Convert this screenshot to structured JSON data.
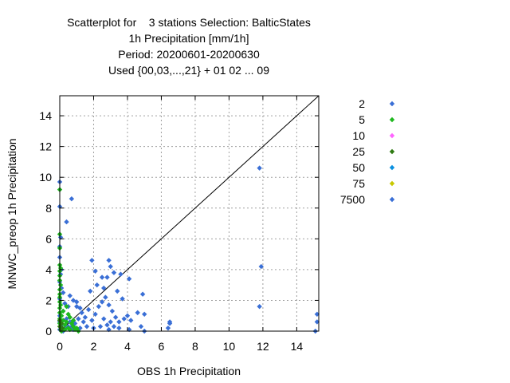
{
  "chart_data": {
    "type": "scatter",
    "title_lines": [
      "Scatterplot for    3 stations Selection: BalticStates",
      "1h Precipitation [mm/1h]",
      "Period: 20200601-20200630",
      "Used {00,03,...,21} + 01 02 ... 09"
    ],
    "xlabel": "OBS 1h Precipitation",
    "ylabel": "MNWC_preop 1h Precipitation",
    "xlim": [
      0,
      15.3
    ],
    "ylim": [
      0,
      15.3
    ],
    "xticks": [
      0,
      2,
      4,
      6,
      8,
      10,
      12,
      14
    ],
    "yticks": [
      0,
      2,
      4,
      6,
      8,
      10,
      12,
      14
    ],
    "grid": true,
    "diagonal_line": true,
    "legend_position": "right",
    "legend": [
      {
        "label": "2",
        "color": "#3a6fd6"
      },
      {
        "label": "5",
        "color": "#1fb81f"
      },
      {
        "label": "10",
        "color": "#ff66ff"
      },
      {
        "label": "25",
        "color": "#2e7a12"
      },
      {
        "label": "50",
        "color": "#0a90e0"
      },
      {
        "label": "75",
        "color": "#c8c800"
      },
      {
        "label": "7500",
        "color": "#3a6fd6"
      }
    ],
    "series": [
      {
        "legend_index": 0,
        "points": [
          [
            0.0,
            9.7
          ],
          [
            0.0,
            8.1
          ],
          [
            0.05,
            6.1
          ],
          [
            0.0,
            5.5
          ],
          [
            0.0,
            4.8
          ],
          [
            0.1,
            4.0
          ],
          [
            0.05,
            3.7
          ],
          [
            0.0,
            3.2
          ],
          [
            0.1,
            2.8
          ],
          [
            0.2,
            2.5
          ],
          [
            0.0,
            2.1
          ],
          [
            0.3,
            1.8
          ],
          [
            0.5,
            1.6
          ],
          [
            0.2,
            1.3
          ],
          [
            0.0,
            1.0
          ],
          [
            0.4,
            0.8
          ],
          [
            0.6,
            0.6
          ],
          [
            0.1,
            0.4
          ],
          [
            0.3,
            0.2
          ],
          [
            0.0,
            0.1
          ],
          [
            0.7,
            0.3
          ],
          [
            0.9,
            0.5
          ],
          [
            1.1,
            0.8
          ],
          [
            1.3,
            1.2
          ],
          [
            1.5,
            0.9
          ],
          [
            1.7,
            1.4
          ],
          [
            1.9,
            0.7
          ],
          [
            2.1,
            1.1
          ],
          [
            2.3,
            1.6
          ],
          [
            2.5,
            1.9
          ],
          [
            2.7,
            2.2
          ],
          [
            2.9,
            1.7
          ],
          [
            3.1,
            1.3
          ],
          [
            3.3,
            0.9
          ],
          [
            3.5,
            0.6
          ],
          [
            2.8,
            0.4
          ],
          [
            2.4,
            0.3
          ],
          [
            2.0,
            0.2
          ],
          [
            1.6,
            0.3
          ],
          [
            1.2,
            0.2
          ],
          [
            0.8,
            0.1
          ],
          [
            0.5,
            0.3
          ],
          [
            1.9,
            4.6
          ],
          [
            2.1,
            3.9
          ],
          [
            2.5,
            3.5
          ],
          [
            2.9,
            4.6
          ],
          [
            3.0,
            4.2
          ],
          [
            3.2,
            3.8
          ],
          [
            3.6,
            3.7
          ],
          [
            4.1,
            3.4
          ],
          [
            2.8,
            3.5
          ],
          [
            2.2,
            3.0
          ],
          [
            1.8,
            2.6
          ],
          [
            2.6,
            2.8
          ],
          [
            3.4,
            2.6
          ],
          [
            3.7,
            2.1
          ],
          [
            4.9,
            2.4
          ],
          [
            4.6,
            1.2
          ],
          [
            5.0,
            1.1
          ],
          [
            4.0,
            1.0
          ],
          [
            3.8,
            0.8
          ],
          [
            4.2,
            0.7
          ],
          [
            3.0,
            0.6
          ],
          [
            2.6,
            0.8
          ],
          [
            1.4,
            0.6
          ],
          [
            1.0,
            1.6
          ],
          [
            0.4,
            7.1
          ],
          [
            0.7,
            8.6
          ],
          [
            0.6,
            2.3
          ],
          [
            0.8,
            2.0
          ],
          [
            1.0,
            1.9
          ],
          [
            1.2,
            1.5
          ],
          [
            3.5,
            0.2
          ],
          [
            4.1,
            0.1
          ],
          [
            4.8,
            0.3
          ],
          [
            5.0,
            0.0
          ],
          [
            6.5,
            0.6
          ],
          [
            6.5,
            0.5
          ],
          [
            6.4,
            0.2
          ],
          [
            11.8,
            10.6
          ],
          [
            11.9,
            4.2
          ],
          [
            11.8,
            1.6
          ],
          [
            15.2,
            1.1
          ],
          [
            15.2,
            0.6
          ],
          [
            15.1,
            0.0
          ],
          [
            2.9,
            0.1
          ],
          [
            3.2,
            0.3
          ],
          [
            0.0,
            0.6
          ],
          [
            0.2,
            0.0
          ]
        ]
      },
      {
        "legend_index": 1,
        "points": [
          [
            0.0,
            9.2
          ],
          [
            0.0,
            6.3
          ],
          [
            0.0,
            5.4
          ],
          [
            0.0,
            4.3
          ],
          [
            0.05,
            4.1
          ],
          [
            0.0,
            3.9
          ],
          [
            0.0,
            3.6
          ],
          [
            0.0,
            3.3
          ],
          [
            0.05,
            3.0
          ],
          [
            0.0,
            2.7
          ],
          [
            0.0,
            2.4
          ],
          [
            0.0,
            2.2
          ],
          [
            0.0,
            1.9
          ],
          [
            0.05,
            1.7
          ],
          [
            0.0,
            1.5
          ],
          [
            0.0,
            1.2
          ],
          [
            0.1,
            1.0
          ],
          [
            0.0,
            0.8
          ],
          [
            0.2,
            0.7
          ],
          [
            0.0,
            0.5
          ],
          [
            0.3,
            0.4
          ],
          [
            0.4,
            0.6
          ],
          [
            0.6,
            0.9
          ],
          [
            0.7,
            0.5
          ],
          [
            0.5,
            0.2
          ],
          [
            0.8,
            0.3
          ],
          [
            1.0,
            0.2
          ],
          [
            1.1,
            0.0
          ],
          [
            0.9,
            0.1
          ],
          [
            0.3,
            0.1
          ],
          [
            0.1,
            0.0
          ],
          [
            0.6,
            0.1
          ],
          [
            0.2,
            1.3
          ],
          [
            0.4,
            1.6
          ],
          [
            0.5,
            1.1
          ],
          [
            0.8,
            0.7
          ]
        ]
      },
      {
        "legend_index": 3,
        "points": [
          [
            0.0,
            0.3
          ],
          [
            0.05,
            0.1
          ],
          [
            0.1,
            0.5
          ],
          [
            0.0,
            0.7
          ],
          [
            0.15,
            0.2
          ]
        ]
      }
    ]
  }
}
